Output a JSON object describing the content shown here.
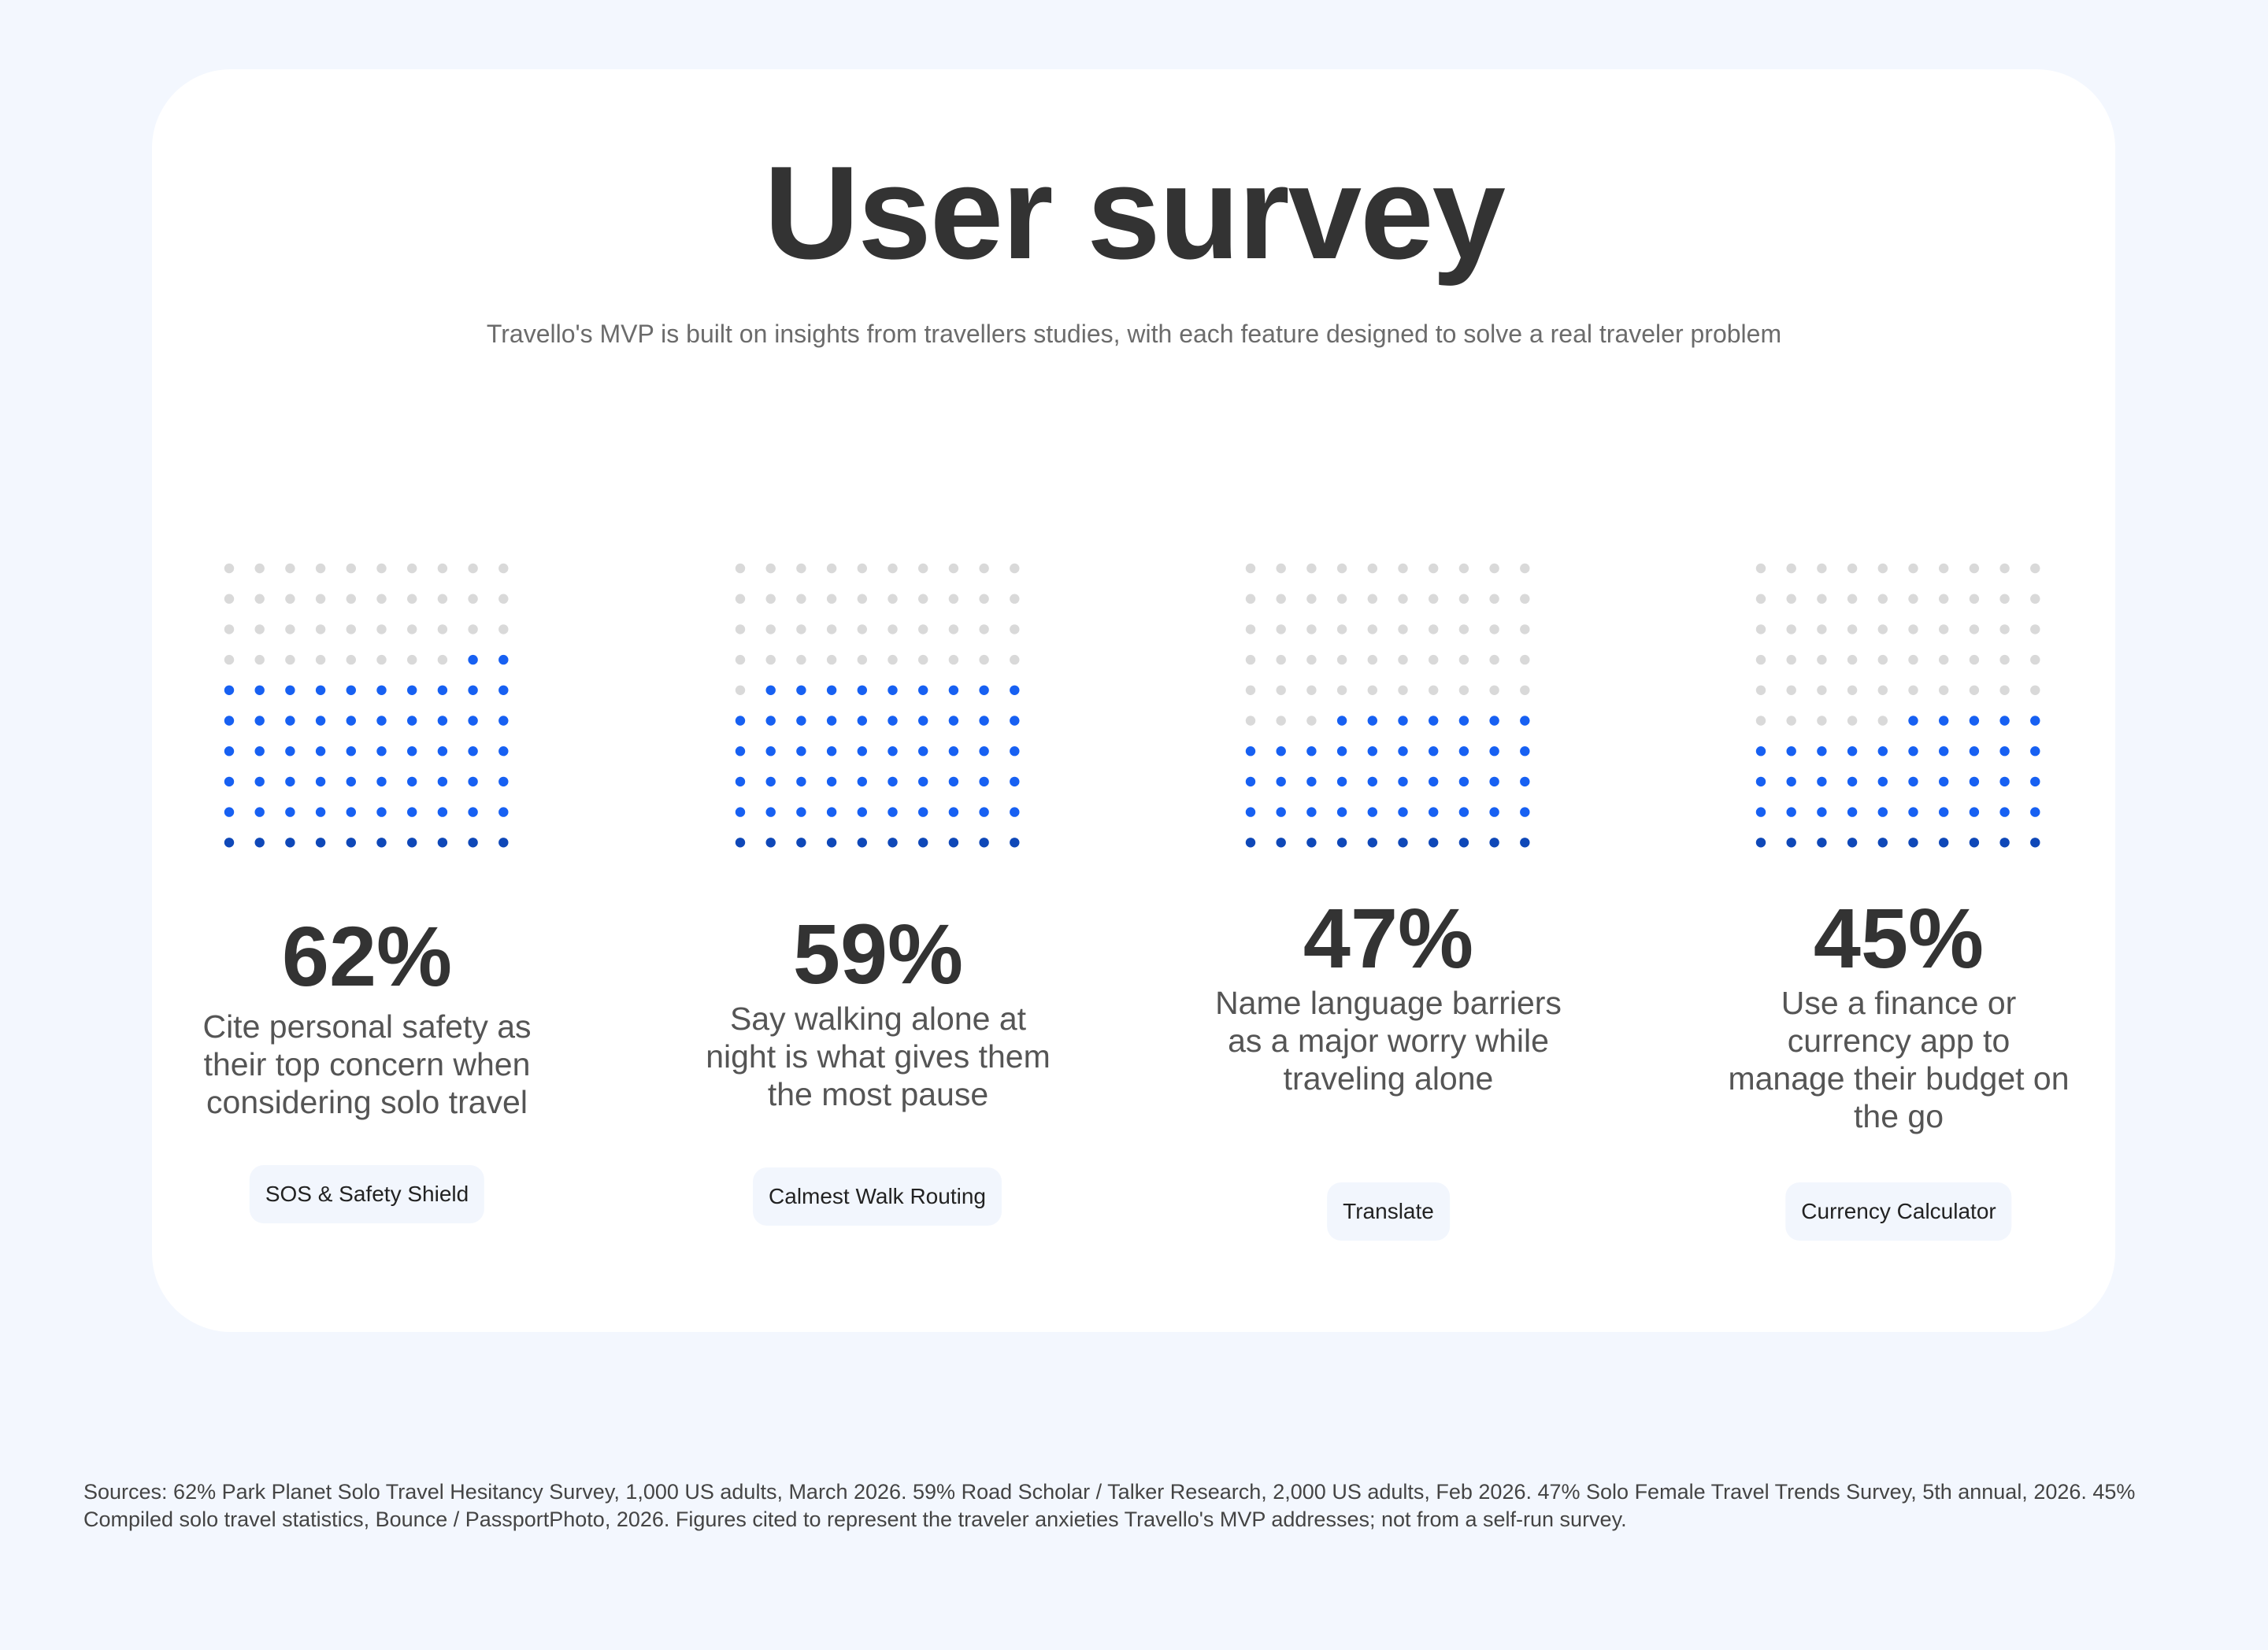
{
  "header": {
    "title": "User survey",
    "subtitle": "Travello's MVP is built on insights from travellers studies, with each feature designed to solve a real traveler problem"
  },
  "colors": {
    "filled": "#1760f2",
    "filled_bottom": "#0f48b8",
    "empty": "#d9d9d9",
    "tag_bg": "#f2f6fd"
  },
  "chart_data": {
    "type": "waffle",
    "grid": {
      "rows": 10,
      "cols": 10
    },
    "items": [
      {
        "value": 62,
        "label": "62%",
        "description": "Cite personal safety as their top concern when considering solo travel",
        "feature": "SOS & Safety Shield"
      },
      {
        "value": 59,
        "label": "59%",
        "description": "Say walking alone at night is what gives them the most pause",
        "feature": "Calmest Walk Routing"
      },
      {
        "value": 47,
        "label": "47%",
        "description": "Name language barriers as a major worry while traveling alone",
        "feature": "Translate"
      },
      {
        "value": 45,
        "label": "45%",
        "description": "Use a finance or currency app to manage their budget on the go",
        "feature": "Currency Calculator"
      }
    ]
  },
  "footer": {
    "sources": "Sources: 62%  Park Planet Solo Travel Hesitancy Survey, 1,000 US adults, March 2026. 59%  Road Scholar / Talker Research, 2,000 US adults, Feb 2026. 47%  Solo Female Travel Trends Survey, 5th annual, 2026. 45%  Compiled solo travel statistics, Bounce / PassportPhoto, 2026. Figures cited to represent the traveler anxieties Travello's MVP addresses; not from a self-run survey."
  }
}
